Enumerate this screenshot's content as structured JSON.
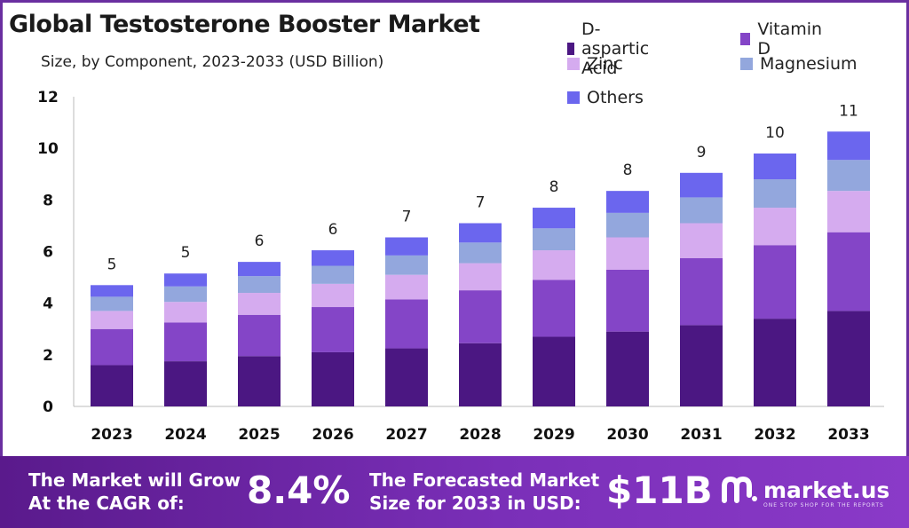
{
  "title": "Global Testosterone Booster Market",
  "subtitle": "Size, by Component, 2023-2033 (USD Billion)",
  "chart_data": {
    "type": "bar",
    "stacked": true,
    "categories": [
      "2023",
      "2024",
      "2025",
      "2026",
      "2027",
      "2028",
      "2029",
      "2030",
      "2031",
      "2032",
      "2033"
    ],
    "series": [
      {
        "name": "D-aspartic Acid",
        "color": "#4b1782",
        "values": [
          1.6,
          1.75,
          1.95,
          2.1,
          2.25,
          2.45,
          2.7,
          2.9,
          3.15,
          3.4,
          3.7
        ]
      },
      {
        "name": "Vitamin D",
        "color": "#8445c7",
        "values": [
          1.4,
          1.5,
          1.6,
          1.75,
          1.9,
          2.05,
          2.2,
          2.4,
          2.6,
          2.85,
          3.05
        ]
      },
      {
        "name": "Zinc",
        "color": "#d5abef",
        "values": [
          0.7,
          0.8,
          0.85,
          0.9,
          0.95,
          1.05,
          1.15,
          1.25,
          1.35,
          1.45,
          1.6
        ]
      },
      {
        "name": "Magnesium",
        "color": "#93a7dd",
        "values": [
          0.55,
          0.6,
          0.65,
          0.7,
          0.75,
          0.8,
          0.85,
          0.95,
          1.0,
          1.1,
          1.2
        ]
      },
      {
        "name": "Others",
        "color": "#6b66ee",
        "values": [
          0.45,
          0.5,
          0.55,
          0.6,
          0.7,
          0.75,
          0.8,
          0.85,
          0.95,
          1.0,
          1.1
        ]
      }
    ],
    "totals_labels": [
      "5",
      "5",
      "6",
      "6",
      "7",
      "7",
      "8",
      "8",
      "9",
      "10",
      "11"
    ],
    "yticks": [
      "0",
      "2",
      "4",
      "6",
      "8",
      "10",
      "12"
    ],
    "ylim": [
      0,
      12
    ],
    "xlabel": "",
    "ylabel": "",
    "legend_position": "top-right",
    "grid": false
  },
  "footer": {
    "cagr_label_line1": "The Market will Grow",
    "cagr_label_line2": "At the CAGR of:",
    "cagr_value": "8.4%",
    "forecast_label_line1": "The Forecasted Market",
    "forecast_label_line2": "Size for 2033 in USD:",
    "forecast_value": "$11B",
    "brand_name": "market.us",
    "brand_tagline": "ONE STOP SHOP FOR THE REPORTS",
    "logo_icon": "market-us-logo-icon"
  }
}
